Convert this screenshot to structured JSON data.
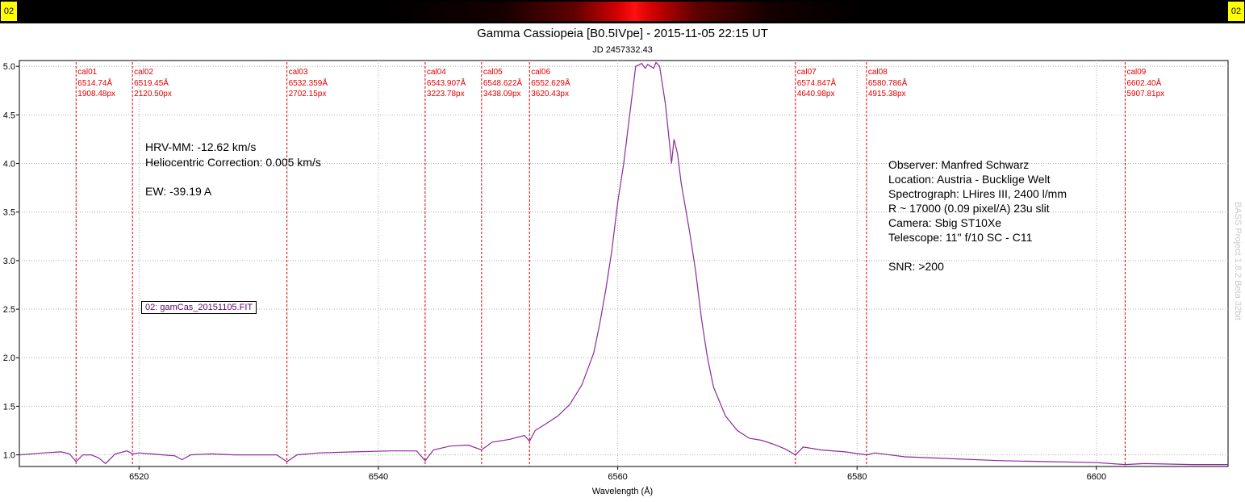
{
  "header": {
    "badge_left": "02",
    "badge_right": "02"
  },
  "title": "Gamma Cassiopeia [B0.5IVpe] - 2015-11-05 22:15 UT",
  "subtitle": "JD 2457332.43",
  "notes_left": {
    "hrv": "HRV-MM: -12.62 km/s",
    "correction": "Heliocentric Correction: 0.005 km/s",
    "ew": "EW: -39.19 A"
  },
  "notes_right": {
    "observer": "Observer: Manfred Schwarz",
    "location": "Location: Austria - Bucklige Welt",
    "spectrograph": "Spectrograph: LHires III, 2400 l/mm",
    "resolution": "R ~ 17000 (0.09 pixel/A) 23u slit",
    "camera": "Camera: Sbig ST10Xe",
    "telescope": "Telescope: 11'' f/10 SC - C11",
    "snr": "SNR: >200"
  },
  "file_label": "02: gamCas_20151105.FIT",
  "side_text": "BASS Project 1.8.2 Beta 32bit",
  "colors": {
    "spectrum": "#8b2a9a",
    "calibration": "#e00000",
    "bar_badge": "#ffff00"
  },
  "chart_data": {
    "type": "line",
    "xlabel": "Wavelength (Å)",
    "ylabel": "",
    "xlim": [
      6510,
      6611
    ],
    "ylim": [
      0.88,
      5.06
    ],
    "xticks": [
      6520,
      6540,
      6560,
      6580,
      6600
    ],
    "yticks": [
      1.0,
      1.5,
      2.0,
      2.5,
      3.0,
      3.5,
      4.0,
      4.5,
      5.0
    ],
    "grid": true,
    "calibration_lines": [
      {
        "name": "cal01",
        "wavelength": 6514.74,
        "label": "6514.74Å",
        "px": "1908.48px"
      },
      {
        "name": "cal02",
        "wavelength": 6519.45,
        "label": "6519.45Å",
        "px": "2120.50px"
      },
      {
        "name": "cal03",
        "wavelength": 6532.359,
        "label": "6532.359Å",
        "px": "2702.15px"
      },
      {
        "name": "cal04",
        "wavelength": 6543.907,
        "label": "6543.907Å",
        "px": "3223.78px"
      },
      {
        "name": "cal05",
        "wavelength": 6548.622,
        "label": "6548.622Å",
        "px": "3438.09px"
      },
      {
        "name": "cal06",
        "wavelength": 6552.629,
        "label": "6552.629Å",
        "px": "3620.43px"
      },
      {
        "name": "cal07",
        "wavelength": 6574.847,
        "label": "6574.847Å",
        "px": "4640.98px"
      },
      {
        "name": "cal08",
        "wavelength": 6580.786,
        "label": "6580.786Å",
        "px": "4915.38px"
      },
      {
        "name": "cal09",
        "wavelength": 6602.4,
        "label": "6602.40Å",
        "px": "5907.81px"
      }
    ],
    "series": [
      {
        "x": [
          6510,
          6512,
          6513.5,
          6514.2,
          6514.74,
          6515.3,
          6516,
          6516.6,
          6517.2,
          6518,
          6519,
          6519.45,
          6520,
          6521,
          6522,
          6523,
          6523.6,
          6524.3,
          6526,
          6528,
          6530,
          6531.5,
          6532.359,
          6533.2,
          6535,
          6538,
          6541,
          6543.2,
          6543.907,
          6544.6,
          6546,
          6547.5,
          6548.622,
          6549.5,
          6551,
          6552.2,
          6552.629,
          6553.1,
          6554,
          6555,
          6556,
          6557,
          6558,
          6558.5,
          6559,
          6559.5,
          6560,
          6560.5,
          6561,
          6561.3,
          6561.5,
          6562,
          6562.3,
          6562.5,
          6563,
          6563.2,
          6563.5,
          6564,
          6564.5,
          6564.7,
          6565,
          6565.3,
          6566,
          6566.5,
          6567,
          6567.5,
          6568,
          6569,
          6570,
          6571,
          6572,
          6573,
          6574,
          6574.847,
          6575.5,
          6577,
          6579,
          6580.786,
          6581.5,
          6584,
          6588,
          6592,
          6596,
          6600,
          6602.4,
          6604,
          6608,
          6611
        ],
        "y": [
          1.0,
          1.02,
          1.03,
          1.01,
          0.93,
          1.0,
          1.0,
          0.97,
          0.91,
          1.01,
          1.04,
          1.01,
          1.02,
          1.01,
          1.0,
          0.99,
          0.95,
          1.0,
          1.01,
          1.0,
          1.0,
          1.0,
          0.93,
          1.0,
          1.02,
          1.03,
          1.04,
          1.04,
          0.94,
          1.05,
          1.09,
          1.1,
          1.05,
          1.13,
          1.16,
          1.2,
          1.14,
          1.25,
          1.32,
          1.4,
          1.52,
          1.72,
          2.05,
          2.35,
          2.7,
          3.1,
          3.6,
          4.0,
          4.5,
          4.8,
          5.0,
          5.03,
          4.98,
          5.02,
          4.98,
          5.04,
          5.0,
          4.6,
          4.0,
          4.25,
          4.1,
          3.8,
          3.3,
          2.9,
          2.4,
          2.0,
          1.7,
          1.4,
          1.25,
          1.17,
          1.15,
          1.11,
          1.06,
          1.0,
          1.08,
          1.05,
          1.03,
          1.0,
          1.02,
          0.98,
          0.96,
          0.94,
          0.93,
          0.92,
          0.9,
          0.91,
          0.9,
          0.9
        ]
      }
    ]
  }
}
